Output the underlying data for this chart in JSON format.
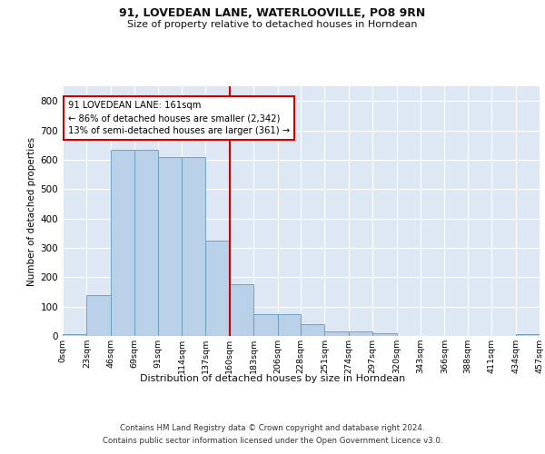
{
  "title1": "91, LOVEDEAN LANE, WATERLOOVILLE, PO8 9RN",
  "title2": "Size of property relative to detached houses in Horndean",
  "xlabel": "Distribution of detached houses by size in Horndean",
  "ylabel": "Number of detached properties",
  "footer1": "Contains HM Land Registry data © Crown copyright and database right 2024.",
  "footer2": "Contains public sector information licensed under the Open Government Licence v3.0.",
  "annotation_line1": "91 LOVEDEAN LANE: 161sqm",
  "annotation_line2": "← 86% of detached houses are smaller (2,342)",
  "annotation_line3": "13% of semi-detached houses are larger (361) →",
  "bar_color": "#b8d0e8",
  "bar_edge_color": "#6699bb",
  "ref_line_color": "#cc0000",
  "ref_line_x": 160,
  "bin_edges": [
    0,
    23,
    46,
    69,
    91,
    114,
    137,
    160,
    183,
    206,
    228,
    251,
    274,
    297,
    320,
    343,
    366,
    388,
    411,
    434,
    457
  ],
  "bar_heights": [
    5,
    140,
    635,
    635,
    610,
    610,
    325,
    175,
    75,
    75,
    40,
    15,
    15,
    10,
    0,
    0,
    0,
    0,
    0,
    5
  ],
  "ylim": [
    0,
    850
  ],
  "yticks": [
    0,
    100,
    200,
    300,
    400,
    500,
    600,
    700,
    800
  ],
  "fig_bg_color": "#ffffff",
  "ax_bg_color": "#dde8f4",
  "grid_color": "#ffffff",
  "title_fontsize": 9,
  "subtitle_fontsize": 8
}
